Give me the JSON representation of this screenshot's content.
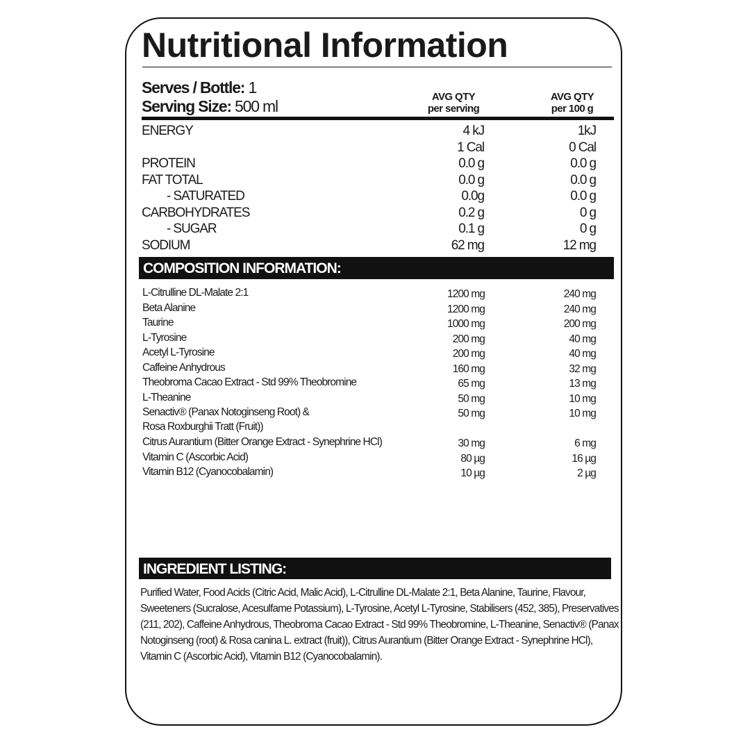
{
  "title": "Nutritional Information",
  "serving": {
    "serves_label": "Serves / Bottle:",
    "serves_value": "1",
    "size_label": "Serving Size:",
    "size_value": "500 ml"
  },
  "columns": {
    "per_serving": {
      "line1": "AVG QTY",
      "line2": "per serving"
    },
    "per_100g": {
      "line1": "AVG QTY",
      "line2": "per 100 g"
    }
  },
  "nutrition": [
    {
      "label": "ENERGY",
      "per_serving": "4 kJ",
      "per_100g": "1kJ",
      "indent": false
    },
    {
      "label": "",
      "per_serving": "1 Cal",
      "per_100g": "0 Cal",
      "indent": false
    },
    {
      "label": "PROTEIN",
      "per_serving": "0.0 g",
      "per_100g": "0.0 g",
      "indent": false
    },
    {
      "label": "FAT TOTAL",
      "per_serving": "0.0 g",
      "per_100g": "0.0 g",
      "indent": false
    },
    {
      "label": "- SATURATED",
      "per_serving": "0.0g",
      "per_100g": "0.0 g",
      "indent": true
    },
    {
      "label": "CARBOHYDRATES",
      "per_serving": "0.2 g",
      "per_100g": "0 g",
      "indent": false
    },
    {
      "label": "- SUGAR",
      "per_serving": "0.1 g",
      "per_100g": "0 g",
      "indent": true
    },
    {
      "label": "SODIUM",
      "per_serving": "62 mg",
      "per_100g": "12 mg",
      "indent": false
    }
  ],
  "composition": {
    "heading": "COMPOSITION INFORMATION:",
    "items": [
      {
        "label": "L-Citrulline DL-Malate 2:1",
        "per_serving": "1200 mg",
        "per_100g": "240 mg"
      },
      {
        "label": "Beta Alanine",
        "per_serving": "1200 mg",
        "per_100g": "240 mg"
      },
      {
        "label": "Taurine",
        "per_serving": "1000 mg",
        "per_100g": "200 mg"
      },
      {
        "label": "L-Tyrosine",
        "per_serving": "200 mg",
        "per_100g": "40 mg"
      },
      {
        "label": "Acetyl L-Tyrosine",
        "per_serving": "200 mg",
        "per_100g": "40 mg"
      },
      {
        "label": "Caffeine Anhydrous",
        "per_serving": "160 mg",
        "per_100g": "32 mg"
      },
      {
        "label": "Theobroma Cacao Extract - Std 99% Theobromine",
        "per_serving": "65 mg",
        "per_100g": "13 mg"
      },
      {
        "label": "L-Theanine",
        "per_serving": "50 mg",
        "per_100g": "10 mg"
      },
      {
        "label": "Senactiv® (Panax Notoginseng Root) & Rosa Roxburghii Tratt (Fruit))",
        "per_serving": "50 mg",
        "per_100g": "10 mg"
      },
      {
        "label": "Citrus Aurantium (Bitter Orange Extract - Synephrine HCl)",
        "per_serving": "30 mg",
        "per_100g": "6 mg"
      },
      {
        "label": "Vitamin C (Ascorbic Acid)",
        "per_serving": "80 µg",
        "per_100g": "16 µg"
      },
      {
        "label": "Vitamin B12 (Cyanocobalamin)",
        "per_serving": "10 µg",
        "per_100g": "2 µg"
      }
    ]
  },
  "ingredients": {
    "heading": "INGREDIENT LISTING:",
    "text": "Purified Water, Food Acids (Citric Acid, Malic Acid), L-Citrulline DL-Malate 2:1, Beta Alanine, Taurine, Flavour, Sweeteners (Sucralose, Acesulfame Potassium), L-Tyrosine, Acetyl L-Tyrosine, Stabilisers (452, 385), Preservatives (211, 202), Caffeine Anhydrous, Theobroma Cacao Extract - Std 99% Theobromine, L-Theanine, Senactiv® (Panax Notoginseng (root) & Rosa canina L. extract (fruit)), Citrus Aurantium (Bitter Orange Extract - Synephrine HCl), Vitamin C (Ascorbic Acid), Vitamin B12 (Cyanocobalamin)."
  }
}
